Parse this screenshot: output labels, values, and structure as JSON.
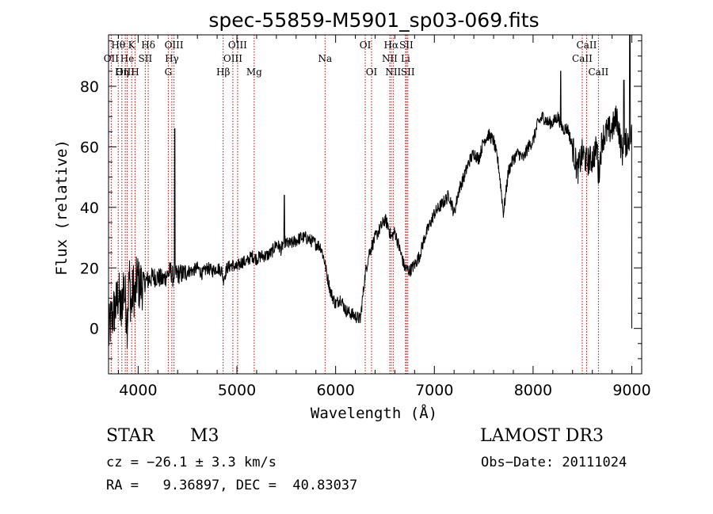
{
  "chart_data": {
    "type": "line",
    "title": "spec-55859-M5901_sp03-069.fits",
    "xlabel": "Wavelength (Å)",
    "ylabel": "Flux (relative)",
    "xlim": [
      3700,
      9100
    ],
    "ylim": [
      -15,
      97
    ],
    "xticks": [
      4000,
      5000,
      6000,
      7000,
      8000,
      9000
    ],
    "yticks": [
      0,
      20,
      40,
      60,
      80
    ],
    "spectrum_anchor_points": {
      "x": [
        3700,
        3720,
        3750,
        3780,
        3800,
        3830,
        3850,
        3870,
        3890,
        3910,
        3930,
        3950,
        3970,
        3990,
        4010,
        4050,
        4100,
        4150,
        4200,
        4250,
        4300,
        4330,
        4350,
        4370,
        4400,
        4450,
        4500,
        4550,
        4600,
        4650,
        4700,
        4750,
        4800,
        4850,
        4861,
        4900,
        4950,
        5000,
        5050,
        5100,
        5150,
        5200,
        5250,
        5300,
        5350,
        5400,
        5450,
        5480,
        5500,
        5550,
        5600,
        5650,
        5700,
        5750,
        5800,
        5850,
        5890,
        5910,
        5950,
        6000,
        6050,
        6100,
        6150,
        6200,
        6250,
        6300,
        6340,
        6400,
        6450,
        6500,
        6530,
        6563,
        6600,
        6650,
        6700,
        6750,
        6800,
        6850,
        6900,
        6950,
        7000,
        7050,
        7100,
        7150,
        7200,
        7250,
        7300,
        7350,
        7400,
        7450,
        7500,
        7550,
        7600,
        7650,
        7700,
        7750,
        7800,
        7850,
        7900,
        7950,
        8000,
        8050,
        8100,
        8150,
        8200,
        8250,
        8300,
        8350,
        8400,
        8450,
        8500,
        8542,
        8600,
        8650,
        8662,
        8700,
        8750,
        8800,
        8850,
        8900,
        8950,
        9000
      ],
      "y": [
        -3,
        2,
        5,
        8,
        12,
        4,
        15,
        10,
        2,
        18,
        6,
        14,
        10,
        18,
        14,
        15,
        16,
        17,
        17,
        16,
        18,
        19,
        17,
        18,
        18,
        18,
        19,
        19,
        20,
        18,
        20,
        19,
        20,
        19,
        16,
        20,
        21,
        20,
        22,
        22,
        24,
        23,
        24,
        24,
        25,
        28,
        26,
        29,
        28,
        28,
        29,
        30,
        30,
        29,
        28,
        27,
        22,
        18,
        12,
        8,
        10,
        6,
        5,
        4,
        3,
        18,
        25,
        30,
        33,
        36,
        34,
        30,
        32,
        26,
        20,
        19,
        21,
        24,
        30,
        34,
        38,
        40,
        42,
        44,
        38,
        46,
        50,
        55,
        58,
        56,
        62,
        64,
        62,
        54,
        38,
        52,
        56,
        58,
        56,
        60,
        62,
        68,
        70,
        68,
        68,
        70,
        66,
        66,
        60,
        52,
        58,
        55,
        56,
        60,
        50,
        63,
        65,
        66,
        70,
        58,
        62,
        64
      ]
    },
    "emission_peaks": [
      {
        "x": 4370,
        "y": 66
      },
      {
        "x": 5480,
        "y": 44
      },
      {
        "x": 8280,
        "y": 85
      },
      {
        "x": 8920,
        "y": 82
      },
      {
        "x": 8980,
        "y": 97
      }
    ],
    "line_markers": [
      {
        "label": "Hθ",
        "x": 3798,
        "row": 1
      },
      {
        "label": "OII",
        "x": 3727,
        "row": 2
      },
      {
        "label": "OIII",
        "x": 3869,
        "row": 3
      },
      {
        "label": "Hη",
        "x": 3835,
        "row": 3
      },
      {
        "label": "He",
        "x": 3889,
        "row": 2
      },
      {
        "label": "K",
        "x": 3934,
        "row": 1
      },
      {
        "label": "H",
        "x": 3969,
        "row": 3
      },
      {
        "label": "SII",
        "x": 4072,
        "row": 2
      },
      {
        "label": "Hδ",
        "x": 4102,
        "row": 1
      },
      {
        "label": "OIII",
        "x": 4363,
        "row": 1
      },
      {
        "label": "Hγ",
        "x": 4341,
        "row": 2
      },
      {
        "label": "G",
        "x": 4305,
        "row": 3
      },
      {
        "label": "OIII",
        "x": 5007,
        "row": 1
      },
      {
        "label": "OIII",
        "x": 4959,
        "row": 2
      },
      {
        "label": "Hβ",
        "x": 4861,
        "row": 3
      },
      {
        "label": "Mg",
        "x": 5175,
        "row": 3
      },
      {
        "label": "Na",
        "x": 5893,
        "row": 2
      },
      {
        "label": "OI",
        "x": 6300,
        "row": 1
      },
      {
        "label": "OI",
        "x": 6364,
        "row": 3
      },
      {
        "label": "Hα",
        "x": 6563,
        "row": 1
      },
      {
        "label": "NII",
        "x": 6548,
        "row": 2
      },
      {
        "label": "NII",
        "x": 6583,
        "row": 3
      },
      {
        "label": "SII",
        "x": 6716,
        "row": 1
      },
      {
        "label": "Li",
        "x": 6708,
        "row": 2
      },
      {
        "label": "SII",
        "x": 6731,
        "row": 3
      },
      {
        "label": "CaII",
        "x": 8542,
        "row": 1
      },
      {
        "label": "CaII",
        "x": 8498,
        "row": 2
      },
      {
        "label": "CaII",
        "x": 8662,
        "row": 3
      }
    ]
  },
  "info": {
    "object_class": "STAR",
    "subclass": "M3",
    "survey": "LAMOST DR3",
    "cz": "cz = −26.1 ± 3.3 km/s",
    "obs_date": "Obs−Date: 20111024",
    "coords": "RA =   9.36897, DEC =  40.83037"
  },
  "colors": {
    "spectrum": "#000000",
    "marker_line": "#cc0000",
    "axes": "#000000"
  }
}
